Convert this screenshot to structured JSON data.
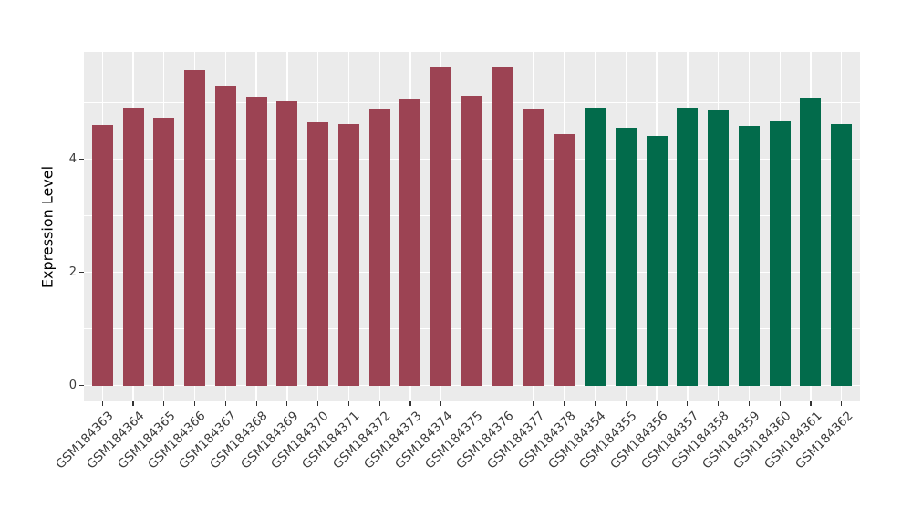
{
  "chart_data": {
    "type": "bar",
    "title": "",
    "xlabel": "",
    "ylabel": "Expression Level",
    "categories": [
      "GSM184363",
      "GSM184364",
      "GSM184365",
      "GSM184366",
      "GSM184367",
      "GSM184368",
      "GSM184369",
      "GSM184370",
      "GSM184371",
      "GSM184372",
      "GSM184373",
      "GSM184374",
      "GSM184375",
      "GSM184376",
      "GSM184377",
      "GSM184378",
      "GSM184354",
      "GSM184355",
      "GSM184356",
      "GSM184357",
      "GSM184358",
      "GSM184359",
      "GSM184360",
      "GSM184361",
      "GSM184362"
    ],
    "values": [
      4.61,
      4.91,
      4.74,
      5.58,
      5.3,
      5.11,
      5.03,
      4.66,
      4.62,
      4.9,
      5.08,
      5.63,
      5.12,
      5.62,
      4.9,
      4.44,
      4.91,
      4.56,
      4.41,
      4.91,
      4.87,
      4.6,
      4.67,
      5.1,
      4.63
    ],
    "group_of_bar": [
      0,
      0,
      0,
      0,
      0,
      0,
      0,
      0,
      0,
      0,
      0,
      0,
      0,
      0,
      0,
      0,
      1,
      1,
      1,
      1,
      1,
      1,
      1,
      1,
      1
    ],
    "group_colors": [
      "#9C4353",
      "#026B4B"
    ],
    "yticks_major": [
      0,
      2,
      4
    ],
    "yticks_minor": [
      1,
      3,
      5
    ],
    "ylim_panel": [
      -0.28,
      5.9
    ],
    "grid": "on",
    "legend": "none",
    "panel_bg": "#EBEBEB",
    "grid_color": "#FFFFFF",
    "tick_color": "#333333",
    "bar_width_fraction": 0.68
  }
}
